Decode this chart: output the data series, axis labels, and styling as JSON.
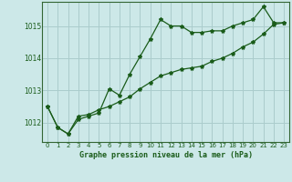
{
  "title": "Graphe pression niveau de la mer (hPa)",
  "bg_color": "#cce8e8",
  "grid_color": "#aacccc",
  "line_color": "#1a5c1a",
  "spine_color": "#336633",
  "x_ticks": [
    0,
    1,
    2,
    3,
    4,
    5,
    6,
    7,
    8,
    9,
    10,
    11,
    12,
    13,
    14,
    15,
    16,
    17,
    18,
    19,
    20,
    21,
    22,
    23
  ],
  "y_ticks": [
    1012,
    1013,
    1014,
    1015
  ],
  "ylim": [
    1011.4,
    1015.75
  ],
  "xlim": [
    -0.5,
    23.5
  ],
  "series1_x": [
    0,
    1,
    2,
    3,
    4,
    5,
    6,
    7,
    8,
    9,
    10,
    11,
    12,
    13,
    14,
    15,
    16,
    17,
    18,
    19,
    20,
    21,
    22,
    23
  ],
  "series1_y": [
    1012.5,
    1011.85,
    1011.65,
    1012.1,
    1012.2,
    1012.3,
    1013.05,
    1012.85,
    1013.5,
    1014.05,
    1014.6,
    1015.2,
    1015.0,
    1015.0,
    1014.8,
    1014.8,
    1014.85,
    1014.85,
    1015.0,
    1015.1,
    1015.2,
    1015.6,
    1015.1,
    1015.1
  ],
  "series2_x": [
    0,
    1,
    2,
    3,
    4,
    5,
    6,
    7,
    8,
    9,
    10,
    11,
    12,
    13,
    14,
    15,
    16,
    17,
    18,
    19,
    20,
    21,
    22,
    23
  ],
  "series2_y": [
    1012.5,
    1011.85,
    1011.65,
    1012.2,
    1012.25,
    1012.4,
    1012.5,
    1012.65,
    1012.8,
    1013.05,
    1013.25,
    1013.45,
    1013.55,
    1013.65,
    1013.7,
    1013.75,
    1013.9,
    1014.0,
    1014.15,
    1014.35,
    1014.5,
    1014.75,
    1015.05,
    1015.1
  ]
}
